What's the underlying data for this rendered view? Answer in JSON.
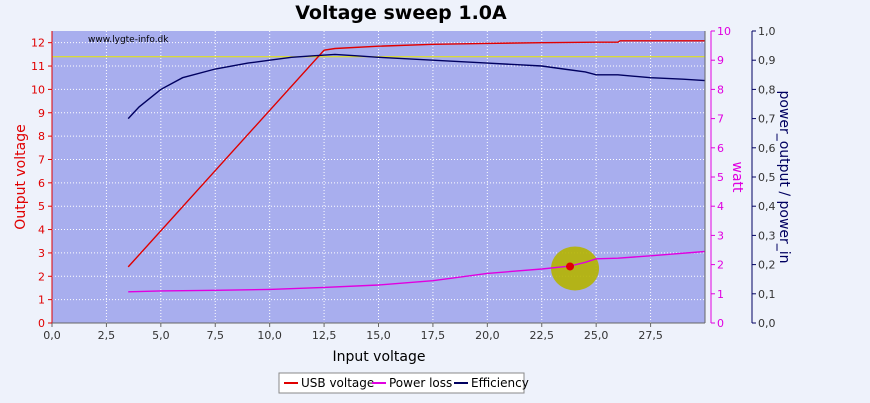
{
  "chart_data": {
    "type": "line",
    "title": "Voltage sweep 1.0A",
    "watermark": "www.lygte-info.dk",
    "xlabel": "Input voltage",
    "xlim": [
      0,
      30
    ],
    "x_ticks": [
      "0,0",
      "2,5",
      "5,0",
      "7,5",
      "10,0",
      "12,5",
      "15,0",
      "17,5",
      "20,0",
      "22,5",
      "25,0",
      "27,5"
    ],
    "y_left": {
      "label": "Output voltage",
      "lim": [
        0,
        12.5
      ],
      "ticks": [
        "0",
        "1",
        "2",
        "3",
        "4",
        "5",
        "6",
        "7",
        "8",
        "9",
        "10",
        "11",
        "12"
      ],
      "color": "#e00000"
    },
    "y_right1": {
      "label": "watt",
      "lim": [
        0,
        10
      ],
      "ticks": [
        "0",
        "1",
        "2",
        "3",
        "4",
        "5",
        "6",
        "7",
        "8",
        "9",
        "10"
      ],
      "color": "#e000e0"
    },
    "y_right2": {
      "label": "power_output / power_in",
      "lim": [
        0,
        1.0
      ],
      "ticks": [
        "0,0",
        "0,1",
        "0,2",
        "0,3",
        "0,4",
        "0,5",
        "0,6",
        "0,7",
        "0,8",
        "0,9",
        "1,0"
      ],
      "color": "#000060"
    },
    "reference_line": {
      "axis": "y_left",
      "value": 11.4,
      "color": "#e8e800"
    },
    "marker": {
      "x": 23.8,
      "y": 2.42,
      "color": "#e00000",
      "halo_color": "#b4b400"
    },
    "series": [
      {
        "name": "USB voltage",
        "axis": "y_left",
        "color": "#e00000",
        "x": [
          3.5,
          12.5,
          13.0,
          15.0,
          17.5,
          20.0,
          22.5,
          25.0,
          26.0,
          26.1,
          30.0
        ],
        "y": [
          2.4,
          11.68,
          11.75,
          11.85,
          11.93,
          11.97,
          12.0,
          12.02,
          12.02,
          12.08,
          12.08
        ]
      },
      {
        "name": "Power loss",
        "axis": "y_right1",
        "color": "#e000e0",
        "x": [
          3.5,
          5.0,
          7.5,
          10.0,
          12.5,
          15.0,
          17.5,
          20.0,
          22.5,
          23.8,
          24.5,
          25.0,
          26.0,
          27.5,
          30.0
        ],
        "y": [
          1.07,
          1.1,
          1.12,
          1.15,
          1.22,
          1.3,
          1.45,
          1.7,
          1.85,
          1.95,
          2.08,
          2.2,
          2.22,
          2.3,
          2.45
        ]
      },
      {
        "name": "Efficiency",
        "axis": "y_right2",
        "color": "#000060",
        "x": [
          3.5,
          4.0,
          5.0,
          6.0,
          7.5,
          9.0,
          10.0,
          11.0,
          12.0,
          13.0,
          14.0,
          15.0,
          17.5,
          20.0,
          22.5,
          23.5,
          24.5,
          25.0,
          26.0,
          27.5,
          29.0,
          30.0
        ],
        "y": [
          0.7,
          0.74,
          0.8,
          0.84,
          0.87,
          0.89,
          0.9,
          0.91,
          0.915,
          0.92,
          0.915,
          0.91,
          0.9,
          0.89,
          0.88,
          0.87,
          0.86,
          0.85,
          0.85,
          0.84,
          0.835,
          0.83
        ]
      }
    ],
    "legend": {
      "placement": "bottom-center",
      "entries": [
        "USB voltage",
        "Power loss",
        "Efficiency"
      ]
    },
    "grid": true,
    "plot_background": "#a8aeee",
    "grid_color": "#ffffff"
  }
}
